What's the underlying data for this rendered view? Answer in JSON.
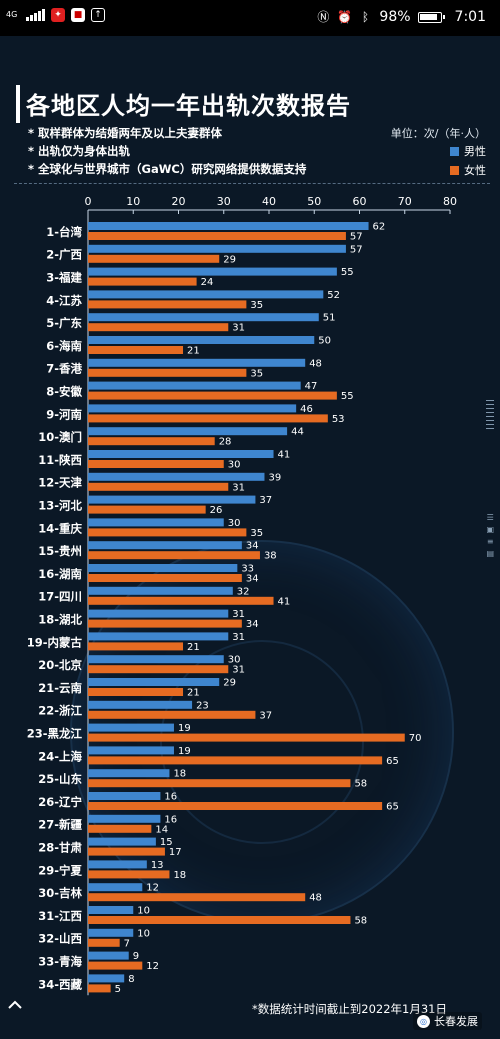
{
  "status_bar": {
    "network": "4G",
    "battery": "98%",
    "time": "7:01"
  },
  "header": {
    "title": "各地区人均一年出轨次数报告",
    "notes": [
      "* 取样群体为结婚两年及以上夫妻群体",
      "* 出轨仅为身体出轨",
      "* 全球化与世界城市（GaWC）研究网络提供数据支持"
    ],
    "unit": "单位：次/（年·人）"
  },
  "legend": {
    "male": "男性",
    "female": "女性"
  },
  "colors": {
    "male": "#3f86cf",
    "female": "#e66b22",
    "background": "#0b1826"
  },
  "chart_data": {
    "type": "bar",
    "orientation": "horizontal",
    "xlim": [
      0,
      80
    ],
    "xticks": [
      0,
      10,
      20,
      30,
      40,
      50,
      60,
      70,
      80
    ],
    "categories": [
      "1-台湾",
      "2-广西",
      "3-福建",
      "4-江苏",
      "5-广东",
      "6-海南",
      "7-香港",
      "8-安徽",
      "9-河南",
      "10-澳门",
      "11-陕西",
      "12-天津",
      "13-河北",
      "14-重庆",
      "15-贵州",
      "16-湖南",
      "17-四川",
      "18-湖北",
      "19-内蒙古",
      "20-北京",
      "21-云南",
      "22-浙江",
      "23-黑龙江",
      "24-上海",
      "25-山东",
      "26-辽宁",
      "27-新疆",
      "28-甘肃",
      "29-宁夏",
      "30-吉林",
      "31-江西",
      "32-山西",
      "33-青海",
      "34-西藏"
    ],
    "series": [
      {
        "name": "男性",
        "values": [
          62,
          57,
          55,
          52,
          51,
          50,
          48,
          47,
          46,
          44,
          41,
          39,
          37,
          30,
          34,
          33,
          32,
          31,
          31,
          30,
          29,
          23,
          19,
          19,
          18,
          16,
          16,
          15,
          13,
          12,
          10,
          10,
          9,
          8
        ]
      },
      {
        "name": "女性",
        "values": [
          57,
          29,
          24,
          35,
          31,
          21,
          35,
          55,
          53,
          28,
          30,
          31,
          26,
          35,
          38,
          34,
          41,
          34,
          21,
          31,
          21,
          37,
          70,
          65,
          58,
          65,
          14,
          17,
          18,
          48,
          58,
          7,
          12,
          5
        ]
      }
    ],
    "legend_position": "top-right"
  },
  "footer": {
    "note": "*数据统计时间截止到2022年1月31日",
    "brand": "长春发展"
  }
}
